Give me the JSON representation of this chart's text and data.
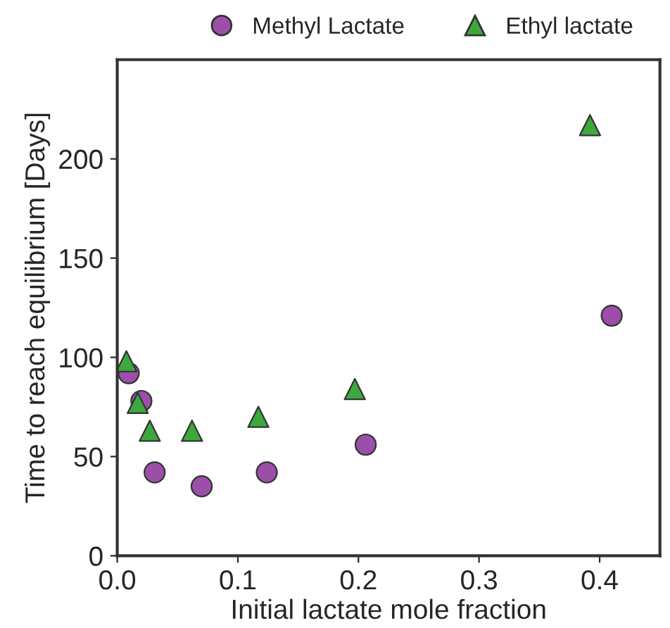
{
  "chart_data": {
    "type": "scatter",
    "xlabel": "Initial lactate mole fraction",
    "ylabel": "Time to reach equilibrium [Days]",
    "xlim": [
      0,
      0.45
    ],
    "ylim": [
      0,
      250
    ],
    "xticks": [
      {
        "value": 0,
        "label": "0.0"
      },
      0.1,
      0.2,
      0.3,
      0.4
    ],
    "yticks": [
      0,
      50,
      100,
      150,
      200
    ],
    "legend": "top",
    "grid": false,
    "series": [
      {
        "name": "Methyl Lactate",
        "color": "#9b4fa8",
        "marker": "circle",
        "x": [
          0.0095,
          0.02,
          0.031,
          0.07,
          0.124,
          0.206,
          0.41
        ],
        "values": [
          92,
          78,
          42,
          35,
          42,
          56,
          121
        ]
      },
      {
        "name": "Ethyl lactate",
        "color": "#3da83d",
        "marker": "triangle",
        "x": [
          0.0076,
          0.017,
          0.027,
          0.062,
          0.117,
          0.197,
          0.392
        ],
        "values": [
          98,
          77,
          63,
          63,
          70,
          84,
          217
        ]
      }
    ]
  }
}
